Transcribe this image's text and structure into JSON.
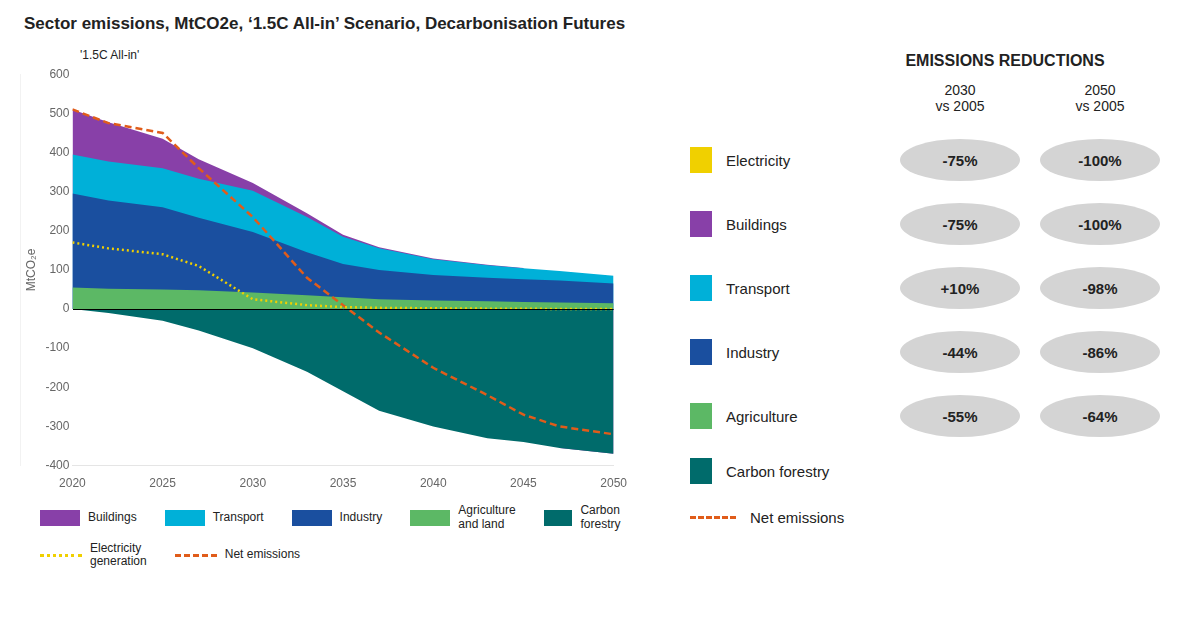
{
  "chart_data": {
    "type": "area",
    "stacked": true,
    "grid": false,
    "legend": "bottom",
    "title": "Sector emissions, MtCO2e, ‘1.5C All-in’ Scenario, Decarbonisation Futures",
    "subtitle": "'1.5C All-in'",
    "ylabel": "MtCO₂e",
    "x": [
      2020,
      2022,
      2025,
      2027,
      2030,
      2033,
      2035,
      2037,
      2040,
      2043,
      2045,
      2047,
      2050
    ],
    "xlim": [
      2020,
      2050
    ],
    "xticks": [
      2020,
      2025,
      2030,
      2035,
      2040,
      2045,
      2050
    ],
    "ylim": [
      -400,
      600
    ],
    "yticks": [
      -400,
      -300,
      -200,
      -100,
      0,
      100,
      200,
      300,
      400,
      500,
      600
    ],
    "series": [
      {
        "name": "Carbon forestry",
        "type": "area",
        "color": "#006b6b",
        "values": [
          0,
          -10,
          -30,
          -55,
          -100,
          -160,
          -210,
          -260,
          -300,
          -330,
          -340,
          -355,
          -370
        ]
      },
      {
        "name": "Agriculture\nand land",
        "type": "area",
        "color": "#5cb865",
        "values": [
          55,
          52,
          50,
          48,
          42,
          35,
          30,
          25,
          22,
          20,
          18,
          17,
          15
        ]
      },
      {
        "name": "Industry",
        "type": "area",
        "color": "#1a4f9f",
        "values": [
          240,
          225,
          210,
          185,
          155,
          110,
          85,
          75,
          65,
          60,
          58,
          56,
          50
        ]
      },
      {
        "name": "Transport",
        "type": "area",
        "color": "#00b0d8",
        "values": [
          100,
          100,
          100,
          100,
          105,
          90,
          70,
          55,
          40,
          32,
          28,
          24,
          20
        ]
      },
      {
        "name": "Buildings",
        "type": "area",
        "color": "#8840a8",
        "values": [
          115,
          100,
          75,
          50,
          20,
          10,
          5,
          3,
          2,
          1,
          1,
          0,
          0
        ]
      },
      {
        "name": "Electricity\ngeneration",
        "type": "line",
        "line_style": "dotted",
        "color": "#f0d000",
        "values": [
          170,
          155,
          140,
          110,
          25,
          10,
          5,
          3,
          2,
          1,
          1,
          0,
          0
        ]
      },
      {
        "name": "Net emissions",
        "type": "line",
        "line_style": "dashed",
        "color": "#e05c1a",
        "values": [
          510,
          475,
          450,
          360,
          235,
          80,
          10,
          -60,
          -150,
          -220,
          -270,
          -300,
          -320
        ]
      }
    ],
    "annotations": {
      "title": "EMISSIONS REDUCTIONS",
      "columns": [
        "2030\nvs 2005",
        "2050\nvs 2005"
      ],
      "rows": [
        {
          "label": "Electricity",
          "color": "#f0d000",
          "values": [
            "-75%",
            "-100%"
          ]
        },
        {
          "label": "Buildings",
          "color": "#8840a8",
          "values": [
            "-75%",
            "-100%"
          ]
        },
        {
          "label": "Transport",
          "color": "#00b0d8",
          "values": [
            "+10%",
            "-98%"
          ]
        },
        {
          "label": "Industry",
          "color": "#1a4f9f",
          "values": [
            "-44%",
            "-86%"
          ]
        },
        {
          "label": "Agriculture",
          "color": "#5cb865",
          "values": [
            "-55%",
            "-64%"
          ]
        },
        {
          "label": "Carbon forestry",
          "color": "#006b6b"
        },
        {
          "label": "Net emissions",
          "color": "#e05c1a",
          "line_style": "dashed"
        }
      ]
    }
  }
}
